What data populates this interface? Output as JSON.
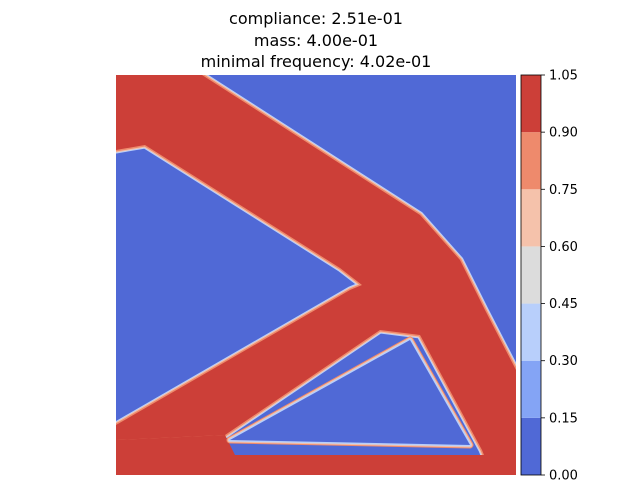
{
  "chart_data": {
    "type": "heatmap",
    "title_lines": [
      "compliance: 2.51e-01",
      "mass: 4.00e-01",
      "minimal frequency: 4.02e-01"
    ],
    "colorbar": {
      "ticks": [
        "0.00",
        "0.15",
        "0.30",
        "0.45",
        "0.60",
        "0.75",
        "0.90",
        "1.05"
      ],
      "range": [
        0.0,
        1.05
      ],
      "levels": [
        {
          "from": 0.0,
          "to": 0.15,
          "color": "#5069d6"
        },
        {
          "from": 0.15,
          "to": 0.3,
          "color": "#84a4f5"
        },
        {
          "from": 0.3,
          "to": 0.45,
          "color": "#b8cffb"
        },
        {
          "from": 0.45,
          "to": 0.6,
          "color": "#dcdcdc"
        },
        {
          "from": 0.6,
          "to": 0.75,
          "color": "#f5c2ab"
        },
        {
          "from": 0.75,
          "to": 0.9,
          "color": "#ee8a6c"
        },
        {
          "from": 0.9,
          "to": 1.05,
          "color": "#cc3f38"
        }
      ]
    },
    "field": {
      "background_value": "void",
      "void_color": "#5069d6",
      "solid_color": "#cc3f38",
      "edge_colors": [
        "#ee8a6c",
        "#f5c2ab",
        "#b8cffb"
      ]
    },
    "grid": false
  }
}
